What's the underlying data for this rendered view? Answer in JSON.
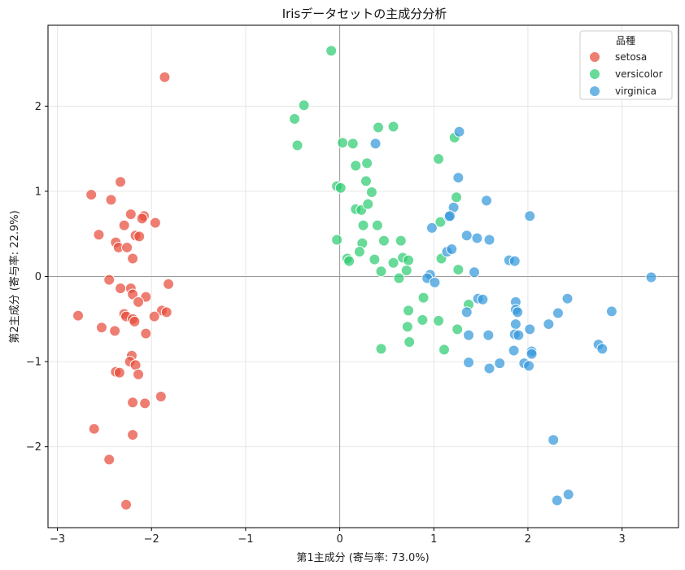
{
  "chart_data": {
    "type": "scatter",
    "title": "Irisデータセットの主成分分析",
    "xlabel": "第1主成分 (寄与率: 73.0%)",
    "ylabel": "第2主成分 (寄与率: 22.9%)",
    "xlim": [
      -3.1,
      3.6
    ],
    "ylim": [
      -2.95,
      2.95
    ],
    "xticks": [
      -3,
      -2,
      -1,
      0,
      1,
      2,
      3
    ],
    "yticks": [
      -2,
      -1,
      0,
      1,
      2
    ],
    "xtick_labels": [
      "−3",
      "−2",
      "−1",
      "0",
      "1",
      "2",
      "3"
    ],
    "ytick_labels": [
      "−2",
      "−1",
      "0",
      "1",
      "2"
    ],
    "grid": true,
    "zero_lines": true,
    "legend": {
      "title": "品種",
      "placement": "top-right"
    },
    "series": [
      {
        "name": "setosa",
        "color": "#e74c3c",
        "points": [
          [
            -1.86,
            2.34
          ],
          [
            -2.33,
            1.11
          ],
          [
            -2.64,
            0.96
          ],
          [
            -2.43,
            0.9
          ],
          [
            -2.08,
            0.71
          ],
          [
            -2.22,
            0.73
          ],
          [
            -2.1,
            0.68
          ],
          [
            -1.96,
            0.63
          ],
          [
            -2.29,
            0.6
          ],
          [
            -2.56,
            0.49
          ],
          [
            -2.17,
            0.48
          ],
          [
            -2.13,
            0.47
          ],
          [
            -2.38,
            0.4
          ],
          [
            -2.35,
            0.34
          ],
          [
            -2.26,
            0.34
          ],
          [
            -2.2,
            0.21
          ],
          [
            -1.82,
            -0.09
          ],
          [
            -2.45,
            -0.04
          ],
          [
            -2.22,
            -0.14
          ],
          [
            -2.33,
            -0.14
          ],
          [
            -2.2,
            -0.21
          ],
          [
            -2.06,
            -0.24
          ],
          [
            -2.14,
            -0.3
          ],
          [
            -1.89,
            -0.4
          ],
          [
            -1.84,
            -0.42
          ],
          [
            -2.29,
            -0.44
          ],
          [
            -2.27,
            -0.47
          ],
          [
            -1.97,
            -0.47
          ],
          [
            -2.78,
            -0.46
          ],
          [
            -2.2,
            -0.5
          ],
          [
            -2.18,
            -0.53
          ],
          [
            -2.53,
            -0.6
          ],
          [
            -2.39,
            -0.64
          ],
          [
            -2.06,
            -0.67
          ],
          [
            -2.21,
            -0.93
          ],
          [
            -2.23,
            -1.0
          ],
          [
            -2.17,
            -1.04
          ],
          [
            -2.38,
            -1.12
          ],
          [
            -2.34,
            -1.13
          ],
          [
            -2.14,
            -1.15
          ],
          [
            -1.9,
            -1.41
          ],
          [
            -2.2,
            -1.48
          ],
          [
            -2.07,
            -1.49
          ],
          [
            -2.61,
            -1.79
          ],
          [
            -2.2,
            -1.86
          ],
          [
            -2.45,
            -2.15
          ],
          [
            -2.27,
            -2.68
          ]
        ]
      },
      {
        "name": "versicolor",
        "color": "#2ecc71",
        "points": [
          [
            -0.09,
            2.65
          ],
          [
            -0.38,
            2.01
          ],
          [
            -0.48,
            1.85
          ],
          [
            -0.45,
            1.54
          ],
          [
            0.41,
            1.75
          ],
          [
            0.57,
            1.76
          ],
          [
            0.03,
            1.57
          ],
          [
            0.14,
            1.56
          ],
          [
            1.22,
            1.63
          ],
          [
            1.05,
            1.38
          ],
          [
            0.17,
            1.3
          ],
          [
            0.29,
            1.33
          ],
          [
            0.28,
            1.12
          ],
          [
            -0.03,
            1.06
          ],
          [
            0.01,
            1.04
          ],
          [
            0.34,
            0.99
          ],
          [
            0.17,
            0.79
          ],
          [
            0.23,
            0.78
          ],
          [
            0.3,
            0.85
          ],
          [
            1.24,
            0.93
          ],
          [
            1.07,
            0.64
          ],
          [
            0.25,
            0.6
          ],
          [
            0.4,
            0.6
          ],
          [
            0.24,
            0.39
          ],
          [
            -0.03,
            0.43
          ],
          [
            0.47,
            0.42
          ],
          [
            0.65,
            0.42
          ],
          [
            0.21,
            0.29
          ],
          [
            0.08,
            0.21
          ],
          [
            0.1,
            0.18
          ],
          [
            0.37,
            0.2
          ],
          [
            0.57,
            0.16
          ],
          [
            0.67,
            0.22
          ],
          [
            0.73,
            0.19
          ],
          [
            1.08,
            0.21
          ],
          [
            0.44,
            0.06
          ],
          [
            0.71,
            0.07
          ],
          [
            1.26,
            0.08
          ],
          [
            0.63,
            -0.02
          ],
          [
            0.89,
            -0.25
          ],
          [
            0.73,
            -0.4
          ],
          [
            0.88,
            -0.51
          ],
          [
            1.05,
            -0.52
          ],
          [
            0.72,
            -0.59
          ],
          [
            1.25,
            -0.62
          ],
          [
            0.74,
            -0.77
          ],
          [
            0.44,
            -0.85
          ],
          [
            1.11,
            -0.86
          ],
          [
            1.37,
            -0.33
          ]
        ]
      },
      {
        "name": "virginica",
        "color": "#3498db",
        "points": [
          [
            1.27,
            1.7
          ],
          [
            0.38,
            1.56
          ],
          [
            1.26,
            1.16
          ],
          [
            1.56,
            0.89
          ],
          [
            1.21,
            0.81
          ],
          [
            1.16,
            0.7
          ],
          [
            1.17,
            0.71
          ],
          [
            2.02,
            0.71
          ],
          [
            0.98,
            0.57
          ],
          [
            1.35,
            0.48
          ],
          [
            1.46,
            0.45
          ],
          [
            1.59,
            0.43
          ],
          [
            1.14,
            0.29
          ],
          [
            1.19,
            0.32
          ],
          [
            1.8,
            0.19
          ],
          [
            1.86,
            0.18
          ],
          [
            1.43,
            0.05
          ],
          [
            0.96,
            0.02
          ],
          [
            0.93,
            -0.02
          ],
          [
            1.01,
            -0.07
          ],
          [
            3.31,
            -0.01
          ],
          [
            1.47,
            -0.26
          ],
          [
            1.52,
            -0.27
          ],
          [
            2.42,
            -0.26
          ],
          [
            1.87,
            -0.3
          ],
          [
            1.87,
            -0.39
          ],
          [
            1.89,
            -0.42
          ],
          [
            1.35,
            -0.42
          ],
          [
            2.32,
            -0.43
          ],
          [
            2.89,
            -0.41
          ],
          [
            1.87,
            -0.56
          ],
          [
            2.22,
            -0.56
          ],
          [
            2.02,
            -0.62
          ],
          [
            1.37,
            -0.69
          ],
          [
            1.58,
            -0.69
          ],
          [
            1.86,
            -0.68
          ],
          [
            1.9,
            -0.69
          ],
          [
            2.75,
            -0.8
          ],
          [
            2.79,
            -0.85
          ],
          [
            1.85,
            -0.87
          ],
          [
            2.04,
            -0.88
          ],
          [
            2.04,
            -0.91
          ],
          [
            1.37,
            -1.01
          ],
          [
            1.7,
            -1.02
          ],
          [
            1.96,
            -1.02
          ],
          [
            2.01,
            -1.05
          ],
          [
            1.59,
            -1.08
          ],
          [
            2.27,
            -1.92
          ],
          [
            2.43,
            -2.56
          ],
          [
            2.31,
            -2.63
          ]
        ]
      }
    ]
  }
}
